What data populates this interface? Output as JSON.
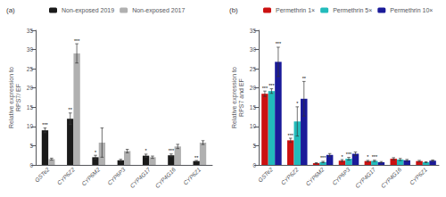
{
  "chart_data": [
    {
      "type": "bar",
      "title": "(a)",
      "categories": [
        "GSTe2",
        "CYP6Z2",
        "CYP6M2",
        "CYP6P3",
        "CYP4G17",
        "CYP4G16",
        "CYP6Z1"
      ],
      "series": [
        {
          "name": "Non-exposed 2019",
          "color": "#1a1a1a",
          "values": [
            9.0,
            12.0,
            2.0,
            1.2,
            2.4,
            2.5,
            1.0
          ],
          "errors": [
            0.6,
            1.5,
            0.5,
            0.25,
            0.4,
            0.35,
            0.15
          ],
          "stars": [
            "***",
            "**",
            "*",
            null,
            "*",
            "***",
            "**"
          ]
        },
        {
          "name": "Non-exposed 2017",
          "color": "#b0b0b0",
          "values": [
            1.5,
            29.0,
            5.8,
            3.6,
            2.0,
            4.8,
            5.8
          ],
          "errors": [
            0.25,
            2.5,
            3.8,
            0.45,
            0.3,
            0.55,
            0.5
          ],
          "stars": [
            null,
            "***",
            null,
            null,
            null,
            null,
            null
          ]
        }
      ],
      "ylabel": "Relative expression to\nRPS7/ EF",
      "ylim": [
        0,
        35
      ],
      "yticks": [
        0,
        5,
        10,
        15,
        20,
        25,
        30,
        35
      ],
      "grid": false,
      "legend": "upper center"
    },
    {
      "type": "bar",
      "title": "(b)",
      "categories": [
        "GSTe2",
        "CYP6Z2",
        "CYP6M2",
        "CYP6P3",
        "CYP4G17",
        "CYP4G16",
        "CYP6Z1"
      ],
      "series": [
        {
          "name": "Permethrin 1×",
          "color": "#cc1111",
          "values": [
            18.5,
            6.4,
            0.45,
            1.1,
            1.0,
            1.6,
            1.0
          ],
          "errors": [
            0.7,
            0.55,
            0.12,
            0.28,
            0.18,
            0.28,
            0.18
          ],
          "stars": [
            "***",
            "***",
            null,
            "*",
            "*",
            null,
            null
          ]
        },
        {
          "name": "Permethrin 5×",
          "color": "#22bbbb",
          "values": [
            19.2,
            11.3,
            0.75,
            1.6,
            1.05,
            1.4,
            0.7
          ],
          "errors": [
            0.6,
            3.8,
            0.18,
            0.35,
            0.18,
            0.28,
            0.12
          ],
          "stars": [
            "***",
            "*",
            "***",
            "***",
            "***",
            null,
            null
          ]
        },
        {
          "name": "Permethrin 10×",
          "color": "#1a1a99",
          "values": [
            26.8,
            17.2,
            2.6,
            2.9,
            0.7,
            1.2,
            1.1
          ],
          "errors": [
            3.8,
            4.5,
            0.35,
            0.45,
            0.18,
            0.22,
            0.18
          ],
          "stars": [
            "***",
            "**",
            null,
            null,
            null,
            null,
            null
          ]
        }
      ],
      "ylabel": "Relative expression to\nRPS7 and EF",
      "ylim": [
        0,
        35
      ],
      "yticks": [
        0,
        5,
        10,
        15,
        20,
        25,
        30,
        35
      ],
      "grid": false,
      "legend": "upper center"
    }
  ]
}
